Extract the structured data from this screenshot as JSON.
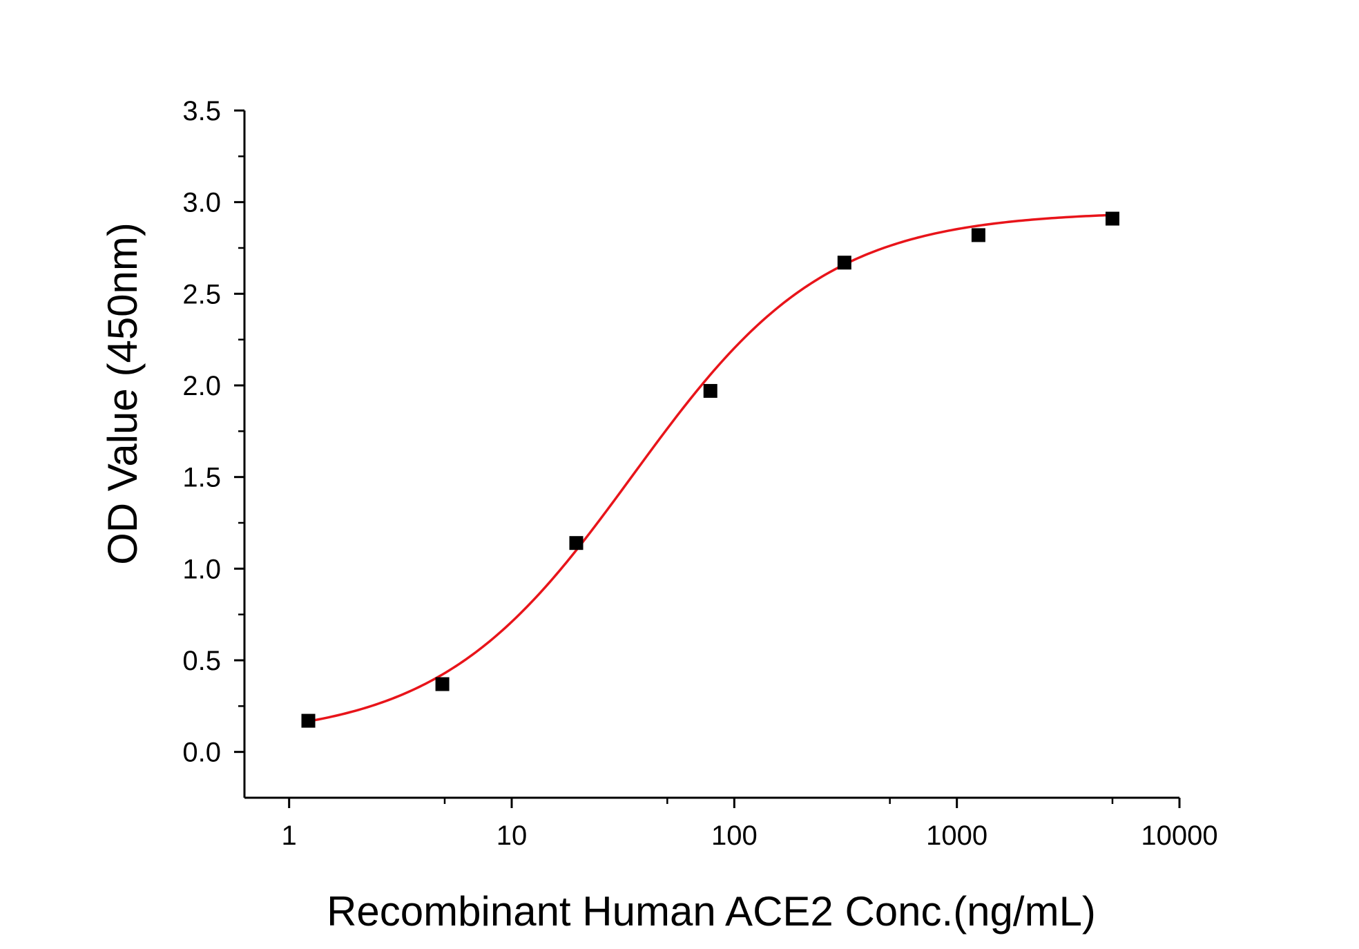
{
  "chart_data": {
    "type": "scatter",
    "title": "",
    "xlabel": "Recombinant Human ACE2 Conc.(ng/mL)",
    "ylabel": "OD Value (450nm)",
    "x_scale": "log",
    "xlim": [
      0.63,
      10000
    ],
    "ylim": [
      -0.25,
      3.5
    ],
    "x_ticks": [
      1,
      10,
      100,
      1000,
      10000
    ],
    "x_tick_labels": [
      "1",
      "10",
      "100",
      "1000",
      "10000"
    ],
    "y_ticks": [
      0.0,
      0.5,
      1.0,
      1.5,
      2.0,
      2.5,
      3.0,
      3.5
    ],
    "y_tick_labels": [
      "0.0",
      "0.5",
      "1.0",
      "1.5",
      "2.0",
      "2.5",
      "3.0",
      "3.5"
    ],
    "grid": false,
    "legend": "none",
    "series": [
      {
        "kind": "points",
        "marker": "square",
        "color": "#000000",
        "x": [
          1.22,
          4.88,
          19.5,
          78.1,
          312.5,
          1250,
          5000
        ],
        "y": [
          0.17,
          0.37,
          1.14,
          1.97,
          2.67,
          2.82,
          2.91
        ]
      },
      {
        "kind": "fit-curve",
        "color": "#e8141a",
        "model": "4PL",
        "params": {
          "bottom": 0.07,
          "top": 2.95,
          "ec50": 35,
          "hill": 1.0
        },
        "x_range": [
          1.22,
          5000
        ]
      }
    ]
  }
}
